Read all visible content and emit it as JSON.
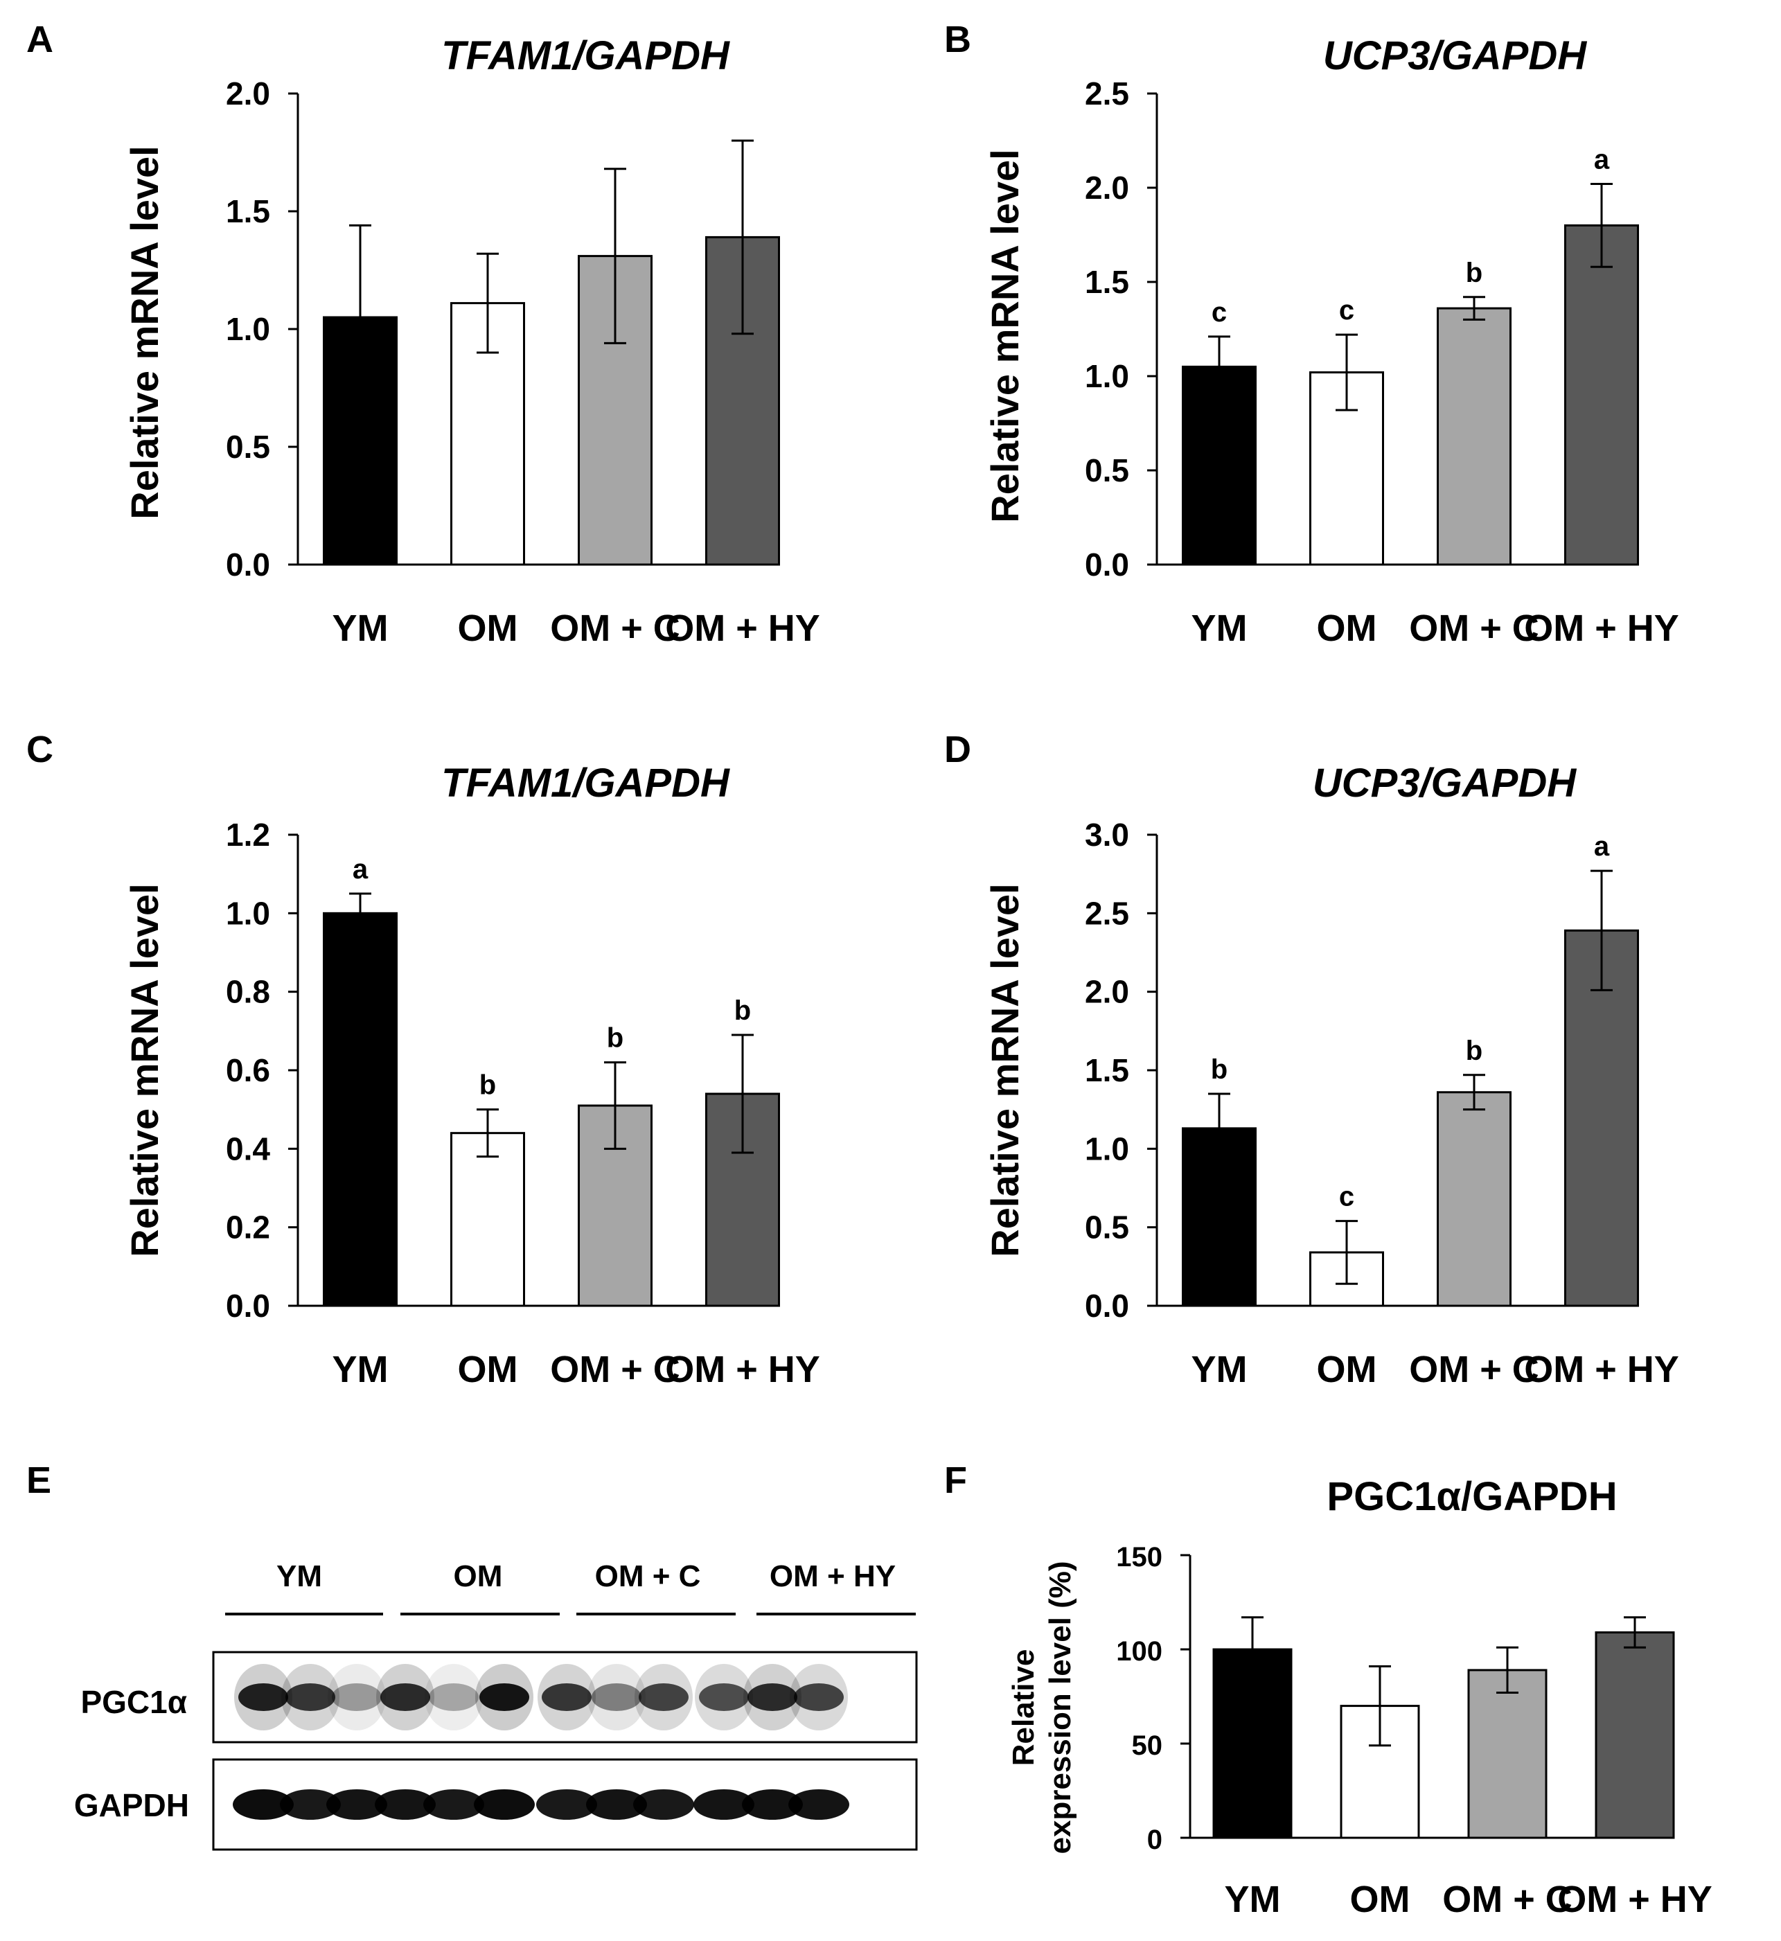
{
  "colors": {
    "YM": "#000000",
    "OM": "#ffffff",
    "OM + C": "#a6a6a6",
    "OM + HY": "#595959",
    "axis": "#000000"
  },
  "chart_data": [
    {
      "panel": "A",
      "type": "bar",
      "title": "TFAM1/GAPDH",
      "title_italic": true,
      "ylabel": "Relative mRNA level",
      "categories": [
        "YM",
        "OM",
        "OM + C",
        "OM + HY"
      ],
      "values": [
        1.05,
        1.11,
        1.31,
        1.39
      ],
      "errors": [
        0.39,
        0.21,
        0.37,
        0.41
      ],
      "significance": [
        "",
        "",
        "",
        ""
      ],
      "ylim": [
        0,
        2.0
      ],
      "ticks": [
        "0.0",
        "0.5",
        "1.0",
        "1.5",
        "2.0"
      ]
    },
    {
      "panel": "B",
      "type": "bar",
      "title": "UCP3/GAPDH",
      "title_italic": true,
      "ylabel": "Relative mRNA level",
      "categories": [
        "YM",
        "OM",
        "OM + C",
        "OM + HY"
      ],
      "values": [
        1.05,
        1.02,
        1.36,
        1.8
      ],
      "errors": [
        0.16,
        0.2,
        0.06,
        0.22
      ],
      "significance": [
        "c",
        "c",
        "b",
        "a"
      ],
      "ylim": [
        0,
        2.5
      ],
      "ticks": [
        "0.0",
        "0.5",
        "1.0",
        "1.5",
        "2.0",
        "2.5"
      ]
    },
    {
      "panel": "C",
      "type": "bar",
      "title": "TFAM1/GAPDH",
      "title_italic": true,
      "ylabel": "Relative mRNA level",
      "categories": [
        "YM",
        "OM",
        "OM + C",
        "OM + HY"
      ],
      "values": [
        1.0,
        0.44,
        0.51,
        0.54
      ],
      "errors": [
        0.05,
        0.06,
        0.11,
        0.15
      ],
      "significance": [
        "a",
        "b",
        "b",
        "b"
      ],
      "ylim": [
        0,
        1.2
      ],
      "ticks": [
        "0.0",
        "0.2",
        "0.4",
        "0.6",
        "0.8",
        "1.0",
        "1.2"
      ]
    },
    {
      "panel": "D",
      "type": "bar",
      "title": "UCP3/GAPDH",
      "title_italic": true,
      "ylabel": "Relative mRNA level",
      "categories": [
        "YM",
        "OM",
        "OM + C",
        "OM + HY"
      ],
      "values": [
        1.13,
        0.34,
        1.36,
        2.39
      ],
      "errors": [
        0.22,
        0.2,
        0.11,
        0.38
      ],
      "significance": [
        "b",
        "c",
        "b",
        "a"
      ],
      "ylim": [
        0,
        3.0
      ],
      "ticks": [
        "0.0",
        "0.5",
        "1.0",
        "1.5",
        "2.0",
        "2.5",
        "3.0"
      ]
    },
    {
      "panel": "F",
      "type": "bar",
      "title": "PGC1α/GAPDH",
      "title_italic": false,
      "ylabel": "Relative expression level (%)",
      "ylabel_lines": [
        "Relative",
        "expression level (%)"
      ],
      "categories": [
        "YM",
        "OM",
        "OM + C",
        "OM + HY"
      ],
      "values": [
        100,
        70,
        89,
        109
      ],
      "errors": [
        17,
        21,
        12,
        8
      ],
      "significance": [
        "",
        "",
        "",
        ""
      ],
      "ylim": [
        0,
        150
      ],
      "ticks": [
        "0",
        "50",
        "100",
        "150"
      ]
    }
  ],
  "blot": {
    "panel": "E",
    "groups": [
      "YM",
      "OM",
      "OM + C",
      "OM + HY"
    ],
    "rows": [
      {
        "label": "PGC1α",
        "intensity": [
          0.85,
          0.75,
          0.35,
          0.8,
          0.3,
          0.9,
          0.75,
          0.45,
          0.7,
          0.65,
          0.8,
          0.7
        ]
      },
      {
        "label": "GAPDH",
        "intensity": [
          0.95,
          0.9,
          0.92,
          0.92,
          0.9,
          0.95,
          0.9,
          0.92,
          0.9,
          0.92,
          0.93,
          0.92
        ]
      }
    ]
  }
}
